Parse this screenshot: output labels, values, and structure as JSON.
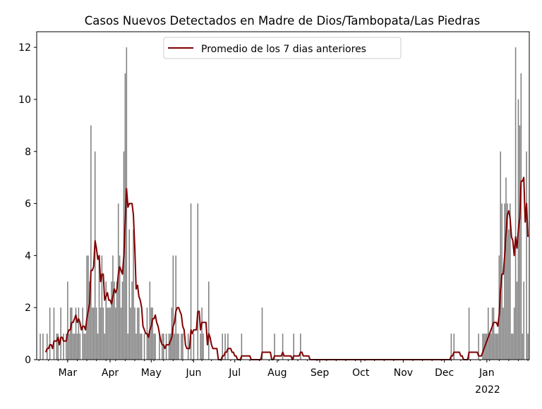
{
  "chart_data": {
    "type": "bar",
    "title": "Casos Nuevos Detectados en Madre de Dios/Tambopata/Las Piedras",
    "xlabel": "",
    "ylabel": "",
    "start_date": "2021-02-07",
    "ylim": [
      0,
      12.6
    ],
    "yticks": [
      0,
      2,
      4,
      6,
      8,
      10,
      12
    ],
    "xticks": [
      {
        "label": "Mar",
        "day_index": 22
      },
      {
        "label": "Apr",
        "day_index": 53
      },
      {
        "label": "May",
        "day_index": 83
      },
      {
        "label": "Jun",
        "day_index": 114
      },
      {
        "label": "Jul",
        "day_index": 144
      },
      {
        "label": "Aug",
        "day_index": 175
      },
      {
        "label": "Sep",
        "day_index": 206
      },
      {
        "label": "Oct",
        "day_index": 236
      },
      {
        "label": "Nov",
        "day_index": 267
      },
      {
        "label": "Dec",
        "day_index": 297
      },
      {
        "label": "Jan",
        "day_index": 328
      }
    ],
    "year_label": "2022",
    "legend": {
      "placement": "top-center",
      "entries": [
        "Promedio de los 7 dias anteriores"
      ]
    },
    "bar_color": "#808080",
    "line_color": "#800000",
    "rolling_window": 7,
    "daily_cases": [
      0,
      0,
      1,
      0,
      1,
      0,
      0,
      1,
      0,
      2,
      0,
      0,
      2,
      0,
      1,
      1,
      0,
      2,
      0,
      1,
      0,
      1,
      3,
      1,
      2,
      2,
      1,
      1,
      2,
      1,
      2,
      1,
      0,
      2,
      1,
      1,
      4,
      4,
      3,
      9,
      2,
      2,
      8,
      2,
      1,
      4,
      2,
      4,
      2,
      1,
      3,
      2,
      2,
      2,
      3,
      4,
      3,
      2,
      3,
      6,
      4,
      2,
      3,
      8,
      11,
      12,
      1,
      5,
      2,
      3,
      5,
      2,
      1,
      2,
      2,
      1,
      1,
      0,
      1,
      0,
      2,
      1,
      3,
      2,
      2,
      1,
      1,
      0,
      0,
      1,
      0,
      1,
      1,
      0,
      1,
      0,
      1,
      1,
      2,
      4,
      1,
      4,
      1,
      1,
      0,
      1,
      1,
      0,
      0,
      0,
      1,
      0,
      6,
      0,
      1,
      0,
      0,
      6,
      0,
      1,
      2,
      1,
      0,
      0,
      0,
      3,
      0,
      0,
      0,
      0,
      0,
      0,
      0,
      0,
      0,
      1,
      0,
      1,
      0,
      1,
      0,
      0,
      0,
      0,
      0,
      0,
      0,
      0,
      0,
      1,
      0,
      0,
      0,
      0,
      0,
      0,
      0,
      0,
      0,
      0,
      0,
      0,
      0,
      0,
      2,
      0,
      0,
      0,
      0,
      0,
      0,
      0,
      0,
      1,
      0,
      0,
      0,
      0,
      0,
      1,
      0,
      0,
      0,
      0,
      0,
      0,
      0,
      1,
      0,
      0,
      0,
      0,
      1,
      0,
      0,
      0,
      0,
      0,
      0,
      0,
      0,
      0,
      0,
      0,
      0,
      0,
      0,
      0,
      0,
      0,
      0,
      0,
      0,
      0,
      0,
      0,
      0,
      0,
      0,
      0,
      0,
      0,
      0,
      0,
      0,
      0,
      0,
      0,
      0,
      0,
      0,
      0,
      0,
      0,
      0,
      0,
      0,
      0,
      0,
      0,
      0,
      0,
      0,
      0,
      0,
      0,
      0,
      0,
      0,
      0,
      0,
      0,
      0,
      0,
      0,
      0,
      0,
      0,
      0,
      0,
      0,
      0,
      0,
      0,
      0,
      0,
      0,
      0,
      0,
      0,
      0,
      0,
      0,
      0,
      0,
      0,
      0,
      0,
      0,
      0,
      0,
      0,
      0,
      0,
      0,
      0,
      0,
      0,
      0,
      0,
      0,
      0,
      0,
      0,
      0,
      0,
      0,
      0,
      0,
      0,
      0,
      0,
      1,
      0,
      1,
      0,
      0,
      0,
      0,
      0,
      0,
      0,
      0,
      0,
      0,
      2,
      0,
      0,
      0,
      0,
      0,
      0,
      1,
      0,
      0,
      1,
      1,
      1,
      1,
      2,
      1,
      1,
      2,
      2,
      1,
      1,
      1,
      4,
      8,
      6,
      2,
      6,
      7,
      6,
      5,
      6,
      1,
      1,
      2,
      12,
      3,
      10,
      9,
      11,
      1,
      3,
      0,
      8,
      1
    ]
  }
}
